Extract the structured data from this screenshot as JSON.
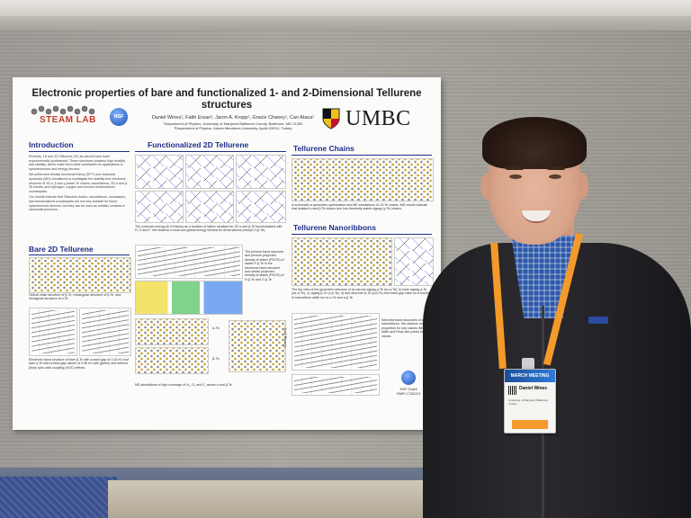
{
  "poster": {
    "title": "Electronic properties of bare and functionalized 1- and 2-Dimensional Tellurene structures",
    "authors": "Daniel Wines¹, Fatih Ersan², Jaron A. Kropp¹, Gracie Chaney¹, Can Ataca¹",
    "affiliation_1": "¹Department of Physics, University of Maryland Baltimore County, Baltimore, MD 21250",
    "affiliation_2": "²Department of Physics, Adnan Menderes University, Aydin 09010, Turkey",
    "logos": {
      "lab": "STEAM LAB",
      "funder": "NSF",
      "university": "UMBC"
    },
    "sections": {
      "introduction": {
        "heading": "Introduction",
        "paragraphs": [
          "Recently, 1D and 2D Tellurene (Te) structures have been experimentally synthesized. These structures possess high mobility and stability, which make them ideal candidates for applications in optoelectronics and energy devices.",
          "We performed density functional theory (DFT) and molecular dynamics (MD) simulations to investigate the stability and electronic structure of 1D α, β and γ phase Te chains, nanoribbons, 2D α and β-Te sheets, and hydrogen, oxygen and fluorine functionalized counterparts.",
          "Our results indicate that Tellurene chains, nanoribbons, monolayers, and functionalized counterparts are not only suitable for future optoelectronic devices, but they can be used as metallic contacts in nanoscale junctions."
        ]
      },
      "bare_2d": {
        "heading": "Bare 2D Tellurene",
        "caption_1": "Helical chain structure of β-Te, rectangular structure of β-Te, and hexagonal structure of α-Te",
        "caption_2": "Electronic band structure of bare β-Te with a band gap of 1.02 eV and bare α-Te with a band gap values of 0.56 eV with (green) and without (blue) spin-orbit coupling (SOC) effects."
      },
      "functionalized_2d": {
        "heading": "Functionalized 2D Tellurene",
        "caption_1": "The cohesive energy (in eV/atom) as a function of lattice constant for 2D α and β-Te functionalized with H, O and F. We observe a local and global energy minima for all structures (except O-β-Te).",
        "caption_2": "The phonon band structure and phonon projected density of states (PDOS) of stable F-β-Te is the electronic band structure and orbital projected density of states (PDOS) of H-β-Te and O-β-Te.",
        "label_a": "α-Te",
        "label_b": "β-Te",
        "caption_3": "MD simulations of high coverage of H₂, O₂ and F₂ above α and β-Te."
      },
      "chains": {
        "heading": "Tellurene Chains",
        "caption": "A schematic of geometric optimization and MD simulations of 1D Te chains. MD results indicate that isolated α and β-Te chains turn into thermally stable zigzag (γ-Te) chains."
      },
      "nanoribbons": {
        "heading": "Tellurene Nanoribbons",
        "caption_1": "The top view of the geometric structure of a) narrow zigzag α-Te (nz-α-Te), b) wide zigzag α-Te (wz-α-Te), c) zigzag β-Te (z-β-Te), d) and armchair β-Te (a-β-Te) and band gap value as a function of nanoribbon width for nz-α-Te and a-β-Te.",
        "caption_2": "Selected band structures of a-β-Te nanoribbons. We observe metallic properties for odd values ribbon width and Dirac-like points for even values.",
        "axis_label": "Energy (eV)"
      },
      "grant": {
        "line_1": "NSF Grant",
        "line_2": "DMR-1726213"
      }
    }
  },
  "badge": {
    "header": "MARCH MEETING",
    "name": "Daniel Wines",
    "affiliation": "University of Maryland, Baltimore County"
  },
  "colors": {
    "section_heading": "#1f2f8a",
    "lanyard": "#f39a2a",
    "sweater": "#232226"
  }
}
